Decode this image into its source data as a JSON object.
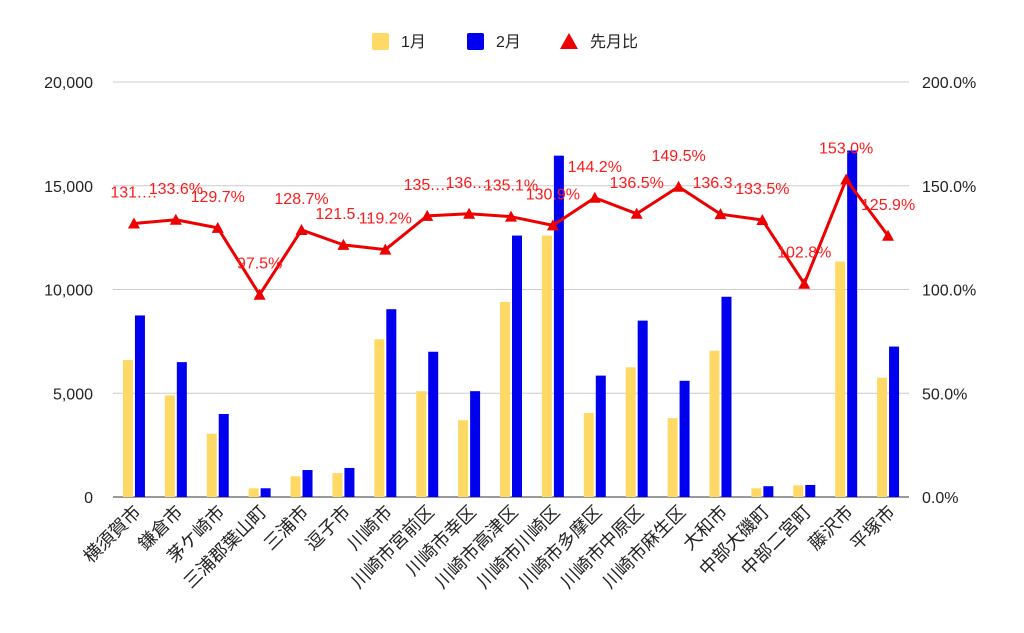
{
  "chart_data": {
    "type": "bar",
    "title": "",
    "xlabel": "",
    "ylabel": "",
    "categories": [
      "横須賀市",
      "鎌倉市",
      "茅ケ崎市",
      "三浦郡葉山町",
      "三浦市",
      "逗子市",
      "川崎市",
      "川崎市宮前区",
      "川崎市幸区",
      "川崎市高津区",
      "川崎市川崎区",
      "川崎市多摩区",
      "川崎市中原区",
      "川崎市麻生区",
      "大和市",
      "中部大磯町",
      "中部二宮町",
      "藤沢市",
      "平塚市"
    ],
    "series": [
      {
        "name": "1月",
        "kind": "bar",
        "axis": "left",
        "color": "#ffd966",
        "values": [
          6600,
          4900,
          3050,
          420,
          1000,
          1150,
          7600,
          5100,
          3700,
          9400,
          12600,
          4050,
          6250,
          3800,
          7050,
          420,
          560,
          11350,
          5750
        ]
      },
      {
        "name": "2月",
        "kind": "bar",
        "axis": "left",
        "color": "#0000ee",
        "values": [
          8750,
          6500,
          4000,
          420,
          1300,
          1400,
          9050,
          7000,
          5100,
          12600,
          16450,
          5850,
          8500,
          5600,
          9650,
          520,
          580,
          16700,
          7250
        ]
      },
      {
        "name": "先月比",
        "kind": "line",
        "axis": "right",
        "color": "#ee0000",
        "values": [
          131.8,
          133.6,
          129.7,
          97.5,
          128.7,
          121.5,
          119.2,
          135.5,
          136.5,
          135.1,
          130.9,
          144.2,
          136.5,
          149.5,
          136.3,
          133.5,
          102.8,
          153.0,
          125.9
        ],
        "labels": [
          "131.…",
          "133.6%",
          "129.7%",
          "97.5%",
          "128.7%",
          "121.5…",
          "119.2%",
          "135.…",
          "136.…",
          "135.1%",
          "130.9%",
          "144.2%",
          "136.5%",
          "149.5%",
          "136.3…",
          "133.5%",
          "102.8%",
          "153.0%",
          "125.9%"
        ]
      }
    ],
    "y_left": {
      "min": 0,
      "max": 20000,
      "ticks": [
        "0",
        "5,000",
        "10,000",
        "15,000",
        "20,000"
      ]
    },
    "y_right": {
      "min": 0,
      "max": 200,
      "ticks": [
        "0.0%",
        "50.0%",
        "100.0%",
        "150.0%",
        "200.0%"
      ]
    },
    "grid": true,
    "legend_position": "top-center"
  }
}
